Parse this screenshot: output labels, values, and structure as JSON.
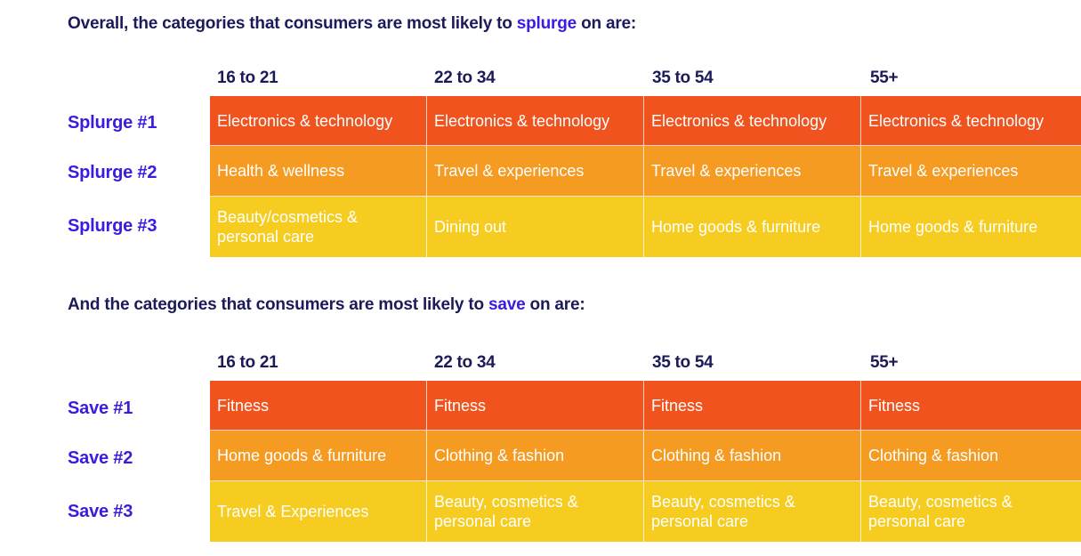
{
  "splurge_section": {
    "heading_prefix": "Overall, the categories that consumers are most likely to ",
    "heading_accent": "splurge",
    "heading_suffix": " on are:",
    "columns": [
      "16 to 21",
      "22 to 34",
      "35 to 54",
      "55+"
    ],
    "rows": [
      {
        "label": "Splurge #1",
        "cells": [
          "Electronics & technology",
          "Electronics & technology",
          "Electronics & technology",
          "Electronics & technology"
        ]
      },
      {
        "label": "Splurge #2",
        "cells": [
          "Health & wellness",
          "Travel & experiences",
          "Travel & experiences",
          "Travel & experiences"
        ]
      },
      {
        "label": "Splurge #3",
        "cells": [
          "Beauty/cosmetics & personal care",
          "Dining out",
          "Home goods & furniture",
          "Home goods & furniture"
        ]
      }
    ]
  },
  "save_section": {
    "heading_prefix": "And the categories that consumers are most likely to ",
    "heading_accent": "save",
    "heading_suffix": " on are:",
    "columns": [
      "16 to 21",
      "22 to 34",
      "35 to 54",
      "55+"
    ],
    "rows": [
      {
        "label": "Save #1",
        "cells": [
          "Fitness",
          "Fitness",
          "Fitness",
          "Fitness"
        ]
      },
      {
        "label": "Save #2",
        "cells": [
          "Home goods & furniture",
          "Clothing & fashion",
          "Clothing & fashion",
          "Clothing & fashion"
        ]
      },
      {
        "label": "Save #3",
        "cells": [
          "Travel & Experiences",
          "Beauty, cosmetics & personal care",
          "Beauty, cosmetics & personal care",
          "Beauty, cosmetics & personal care"
        ]
      }
    ]
  },
  "colors": {
    "heading": "#1b1b5a",
    "accent": "#3a1be0",
    "rank_1": "#f0531d",
    "rank_2": "#f59b22",
    "rank_3": "#f6cc20"
  }
}
